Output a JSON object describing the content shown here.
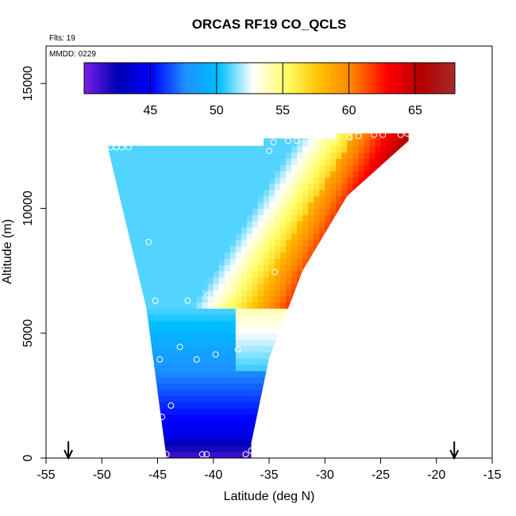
{
  "chart_data": {
    "type": "heatmap",
    "title": "ORCAS RF19 CO_QCLS",
    "annotations": {
      "flights": "Flts: 19",
      "date": "MMDD: 0229"
    },
    "xlabel": "Latitude (deg N)",
    "ylabel": "Altitude (m)",
    "xlim": [
      -55,
      -15
    ],
    "ylim": [
      0,
      16500
    ],
    "x_ticks": [
      -55,
      -50,
      -45,
      -40,
      -35,
      -30,
      -25,
      -20,
      -15
    ],
    "x_tick_labels": [
      "-55",
      "-50",
      "-45",
      "-40",
      "-35",
      "-30",
      "-25",
      "-20",
      "-15"
    ],
    "y_ticks": [
      0,
      5000,
      10000,
      15000
    ],
    "y_tick_labels": [
      "0",
      "5000",
      "10000",
      "15000"
    ],
    "colorbar": {
      "range": [
        40,
        68
      ],
      "ticks": [
        45,
        50,
        55,
        60,
        65
      ],
      "tick_labels": [
        "45",
        "50",
        "55",
        "60",
        "65"
      ],
      "colors": [
        "#7b1fe8",
        "#0000b4",
        "#0000ff",
        "#1e90ff",
        "#00bfff",
        "#ffffff",
        "#ffff66",
        "#ffc000",
        "#ff7f00",
        "#ff0000",
        "#b40000",
        "#a52a2a"
      ]
    },
    "domain_polygon": [
      [
        -44.2,
        0
      ],
      [
        -36.6,
        0
      ],
      [
        -36.6,
        600
      ],
      [
        -35,
        4000
      ],
      [
        -32,
        7500
      ],
      [
        -28,
        10500
      ],
      [
        -22.5,
        12700
      ],
      [
        -22.5,
        13000
      ],
      [
        -29,
        13000
      ],
      [
        -29,
        12800
      ],
      [
        -35.5,
        12800
      ],
      [
        -35.5,
        12500
      ],
      [
        -49.5,
        12500
      ],
      [
        -46,
        6000
      ],
      [
        -44.5,
        1000
      ]
    ],
    "field_model": {
      "center_value": 51,
      "ridge_value": 57,
      "north_high_value": 65,
      "lower_low_value": 43,
      "bottom_value": 41
    },
    "arrows": [
      -53,
      -18.4
    ],
    "sample_points": [
      [
        -49.2,
        12450
      ],
      [
        -48.7,
        12450
      ],
      [
        -48.2,
        12450
      ],
      [
        -47.6,
        12450
      ],
      [
        -35,
        12300
      ],
      [
        -34.6,
        12650
      ],
      [
        -33.3,
        12700
      ],
      [
        -32.5,
        12700
      ],
      [
        -31,
        12750
      ],
      [
        -29.1,
        12800
      ],
      [
        -27.8,
        12850
      ],
      [
        -27,
        12900
      ],
      [
        -25.6,
        12950
      ],
      [
        -24.8,
        12950
      ],
      [
        -23.2,
        12950
      ],
      [
        -22.6,
        13000
      ],
      [
        -45.8,
        8650
      ],
      [
        -34.5,
        7450
      ],
      [
        -39.2,
        6700
      ],
      [
        -38.3,
        6700
      ],
      [
        -40.5,
        6500
      ],
      [
        -45.2,
        6300
      ],
      [
        -42.3,
        6300
      ],
      [
        -36.3,
        5050
      ],
      [
        -43,
        4450
      ],
      [
        -37.8,
        4350
      ],
      [
        -39.8,
        4150
      ],
      [
        -44.8,
        3950
      ],
      [
        -41.5,
        3950
      ],
      [
        -43.8,
        2100
      ],
      [
        -44.6,
        1650
      ],
      [
        -44.2,
        150
      ],
      [
        -41,
        150
      ],
      [
        -40.6,
        150
      ],
      [
        -37.1,
        150
      ],
      [
        -36.6,
        300
      ]
    ]
  }
}
